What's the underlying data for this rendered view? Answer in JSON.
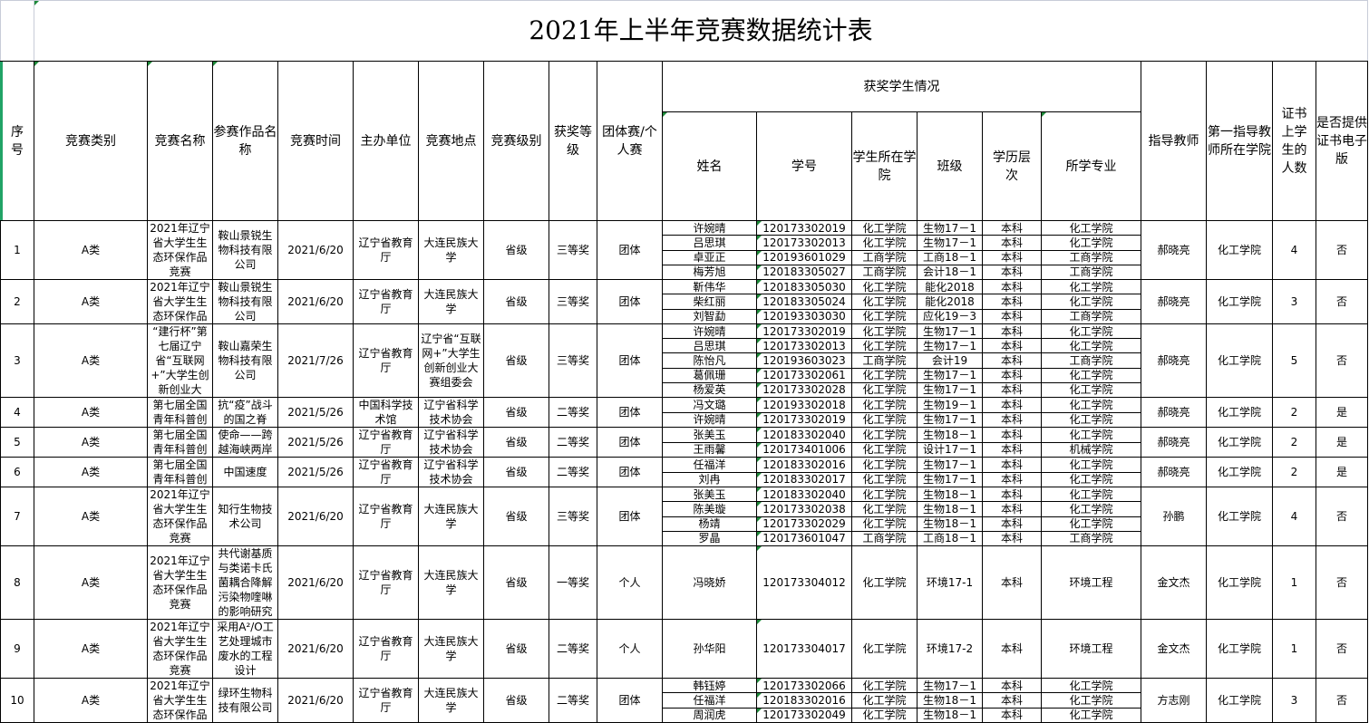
{
  "title": "2021年上半年竞赛数据统计表",
  "headers": {
    "seq": "序号",
    "category": "竞赛类别",
    "comp_name": "竞赛名称",
    "work_name": "参赛作品名称",
    "date": "竞赛时间",
    "organizer": "主办单位",
    "location": "竞赛地点",
    "level": "竞赛级别",
    "award": "获奖等级",
    "type": "团体赛/个人赛",
    "students_group": "获奖学生情况",
    "name": "姓名",
    "id": "学号",
    "college": "学生所在学院",
    "class": "班级",
    "degree": "学历层次",
    "major": "所学专业",
    "advisor": "指导教师",
    "advisor_college": "第一指导教师所在学院",
    "count": "证书上学生的人数",
    "e_cert": "是否提供证书电子版"
  },
  "rows": [
    {
      "seq": "1",
      "category": "A类",
      "comp_name": "2021年辽宁省大学生生态环保作品竞赛",
      "work_name": "鞍山景锐生物科技有限公司",
      "date": "2021/6/20",
      "organizer": "辽宁省教育厅",
      "location": "大连民族大学",
      "level": "省级",
      "award": "三等奖",
      "type": "团体",
      "students": [
        {
          "name": "许婉晴",
          "id": "120173302019",
          "college": "化工学院",
          "class": "生物17－1",
          "degree": "本科",
          "major": "化工学院"
        },
        {
          "name": "吕思琪",
          "id": "120173302013",
          "college": "化工学院",
          "class": "生物17－1",
          "degree": "本科",
          "major": "化工学院"
        },
        {
          "name": "卓亚正",
          "id": "120193601029",
          "college": "工商学院",
          "class": "工商18－1",
          "degree": "本科",
          "major": "工商学院"
        },
        {
          "name": "梅芳旭",
          "id": "120183305027",
          "college": "工商学院",
          "class": "会计18－1",
          "degree": "本科",
          "major": "工商学院"
        }
      ],
      "advisor": "郝晓亮",
      "advisor_college": "化工学院",
      "count": "4",
      "e_cert": "否"
    },
    {
      "seq": "2",
      "category": "A类",
      "comp_name": "2021年辽宁省大学生生态环保作品",
      "work_name": "鞍山景锐生物科技有限公司",
      "date": "2021/6/20",
      "organizer": "辽宁省教育厅",
      "location": "大连民族大学",
      "level": "省级",
      "award": "三等奖",
      "type": "团体",
      "students": [
        {
          "name": "靳伟华",
          "id": "120183305030",
          "college": "化工学院",
          "class": "能化2018",
          "degree": "本科",
          "major": "化工学院"
        },
        {
          "name": "柴红丽",
          "id": "120183305024",
          "college": "化工学院",
          "class": "能化2018",
          "degree": "本科",
          "major": "化工学院"
        },
        {
          "name": "刘智勐",
          "id": "120193303030",
          "college": "化工学院",
          "class": "应化19－3",
          "degree": "本科",
          "major": "工商学院"
        }
      ],
      "advisor": "郝晓亮",
      "advisor_college": "化工学院",
      "count": "3",
      "e_cert": "否"
    },
    {
      "seq": "3",
      "category": "A类",
      "comp_name": "“建行杯”第七届辽宁省“互联网+”大学生创新创业大",
      "work_name": "鞍山嘉荣生物科技有限公司",
      "date": "2021/7/26",
      "organizer": "辽宁省教育厅",
      "location": "辽宁省“互联网+”大学生创新创业大赛组委会",
      "level": "省级",
      "award": "三等奖",
      "type": "团体",
      "students": [
        {
          "name": "许婉晴",
          "id": "120173302019",
          "college": "化工学院",
          "class": "生物17－1",
          "degree": "本科",
          "major": "化工学院"
        },
        {
          "name": "吕思琪",
          "id": "120173302013",
          "college": "化工学院",
          "class": "生物17－1",
          "degree": "本科",
          "major": "化工学院"
        },
        {
          "name": "陈怡凡",
          "id": "120193603023",
          "college": "工商学院",
          "class": "会计19",
          "degree": "本科",
          "major": "工商学院"
        },
        {
          "name": "葛佩珊",
          "id": "120173302061",
          "college": "化工学院",
          "class": "生物17－1",
          "degree": "本科",
          "major": "化工学院"
        },
        {
          "name": "杨爱英",
          "id": "120173302028",
          "college": "化工学院",
          "class": "生物17－1",
          "degree": "本科",
          "major": "化工学院"
        }
      ],
      "advisor": "郝晓亮",
      "advisor_college": "化工学院",
      "count": "5",
      "e_cert": "否"
    },
    {
      "seq": "4",
      "category": "A类",
      "comp_name": "第七届全国青年科普创",
      "work_name": "抗“疫”战斗的国之脊",
      "date": "2021/5/26",
      "organizer": "中国科学技术馆",
      "location": "辽宁省科学技术协会",
      "level": "省级",
      "award": "二等奖",
      "type": "团体",
      "students": [
        {
          "name": "冯文璐",
          "id": "120193302018",
          "college": "化工学院",
          "class": "生物19－1",
          "degree": "本科",
          "major": "化工学院"
        },
        {
          "name": "许婉晴",
          "id": "120173302019",
          "college": "化工学院",
          "class": "生物17－1",
          "degree": "本科",
          "major": "化工学院"
        }
      ],
      "advisor": "郝晓亮",
      "advisor_college": "化工学院",
      "count": "2",
      "e_cert": "是"
    },
    {
      "seq": "5",
      "category": "A类",
      "comp_name": "第七届全国青年科普创",
      "work_name": "使命——跨越海峡两岸",
      "date": "2021/5/26",
      "organizer": "辽宁省教育厅",
      "location": "辽宁省科学技术协会",
      "level": "省级",
      "award": "二等奖",
      "type": "团体",
      "students": [
        {
          "name": "张美玉",
          "id": "120183302040",
          "college": "化工学院",
          "class": "生物18－1",
          "degree": "本科",
          "major": "化工学院"
        },
        {
          "name": "王雨馨",
          "id": "120173401006",
          "college": "化工学院",
          "class": "设计17－1",
          "degree": "本科",
          "major": "机械学院"
        }
      ],
      "advisor": "郝晓亮",
      "advisor_college": "化工学院",
      "count": "2",
      "e_cert": "是"
    },
    {
      "seq": "6",
      "category": "A类",
      "comp_name": "第七届全国青年科普创",
      "work_name": "中国速度",
      "date": "2021/5/26",
      "organizer": "辽宁省教育厅",
      "location": "辽宁省科学技术协会",
      "level": "省级",
      "award": "二等奖",
      "type": "团体",
      "students": [
        {
          "name": "任福洋",
          "id": "120183302016",
          "college": "化工学院",
          "class": "生物17－1",
          "degree": "本科",
          "major": "化工学院"
        },
        {
          "name": "刘冉",
          "id": "120183302017",
          "college": "化工学院",
          "class": "生物17－1",
          "degree": "本科",
          "major": "化工学院"
        }
      ],
      "advisor": "郝晓亮",
      "advisor_college": "化工学院",
      "count": "2",
      "e_cert": "是"
    },
    {
      "seq": "7",
      "category": "A类",
      "comp_name": "2021年辽宁省大学生生态环保作品竞赛",
      "work_name": "知行生物技术公司",
      "date": "2021/6/20",
      "organizer": "辽宁省教育厅",
      "location": "大连民族大学",
      "level": "省级",
      "award": "三等奖",
      "type": "团体",
      "students": [
        {
          "name": "张美玉",
          "id": "120183302040",
          "college": "化工学院",
          "class": "生物18－1",
          "degree": "本科",
          "major": "化工学院"
        },
        {
          "name": "陈美璇",
          "id": "120173302038",
          "college": "化工学院",
          "class": "生物18－1",
          "degree": "本科",
          "major": "化工学院"
        },
        {
          "name": "杨靖",
          "id": "120173302029",
          "college": "化工学院",
          "class": "生物18－1",
          "degree": "本科",
          "major": "化工学院"
        },
        {
          "name": "罗晶",
          "id": "120173601047",
          "college": "工商学院",
          "class": "工商18－1",
          "degree": "本科",
          "major": "工商学院"
        }
      ],
      "advisor": "孙鹏",
      "advisor_college": "化工学院",
      "count": "4",
      "e_cert": "否"
    },
    {
      "seq": "8",
      "category": "A类",
      "comp_name": "2021年辽宁省大学生生态环保作品竞赛",
      "work_name": "共代谢基质与类诺卡氏菌耦合降解污染物喹啉的影响研究",
      "date": "2021/6/20",
      "organizer": "辽宁省教育厅",
      "location": "大连民族大学",
      "level": "省级",
      "award": "一等奖",
      "type": "个人",
      "students": [
        {
          "name": "冯晓娇",
          "id": "120173304012",
          "college": "化工学院",
          "class": "环境17-1",
          "degree": "本科",
          "major": "环境工程"
        }
      ],
      "advisor": "金文杰",
      "advisor_college": "化工学院",
      "count": "1",
      "e_cert": "否"
    },
    {
      "seq": "9",
      "category": "A类",
      "comp_name": "2021年辽宁省大学生生态环保作品竞赛",
      "work_name": "采用A²/O工艺处理城市废水的工程设计",
      "date": "2021/6/20",
      "organizer": "辽宁省教育厅",
      "location": "大连民族大学",
      "level": "省级",
      "award": "二等奖",
      "type": "个人",
      "students": [
        {
          "name": "孙华阳",
          "id": "120173304017",
          "college": "化工学院",
          "class": "环境17-2",
          "degree": "本科",
          "major": "环境工程"
        }
      ],
      "advisor": "金文杰",
      "advisor_college": "化工学院",
      "count": "1",
      "e_cert": "否"
    },
    {
      "seq": "10",
      "category": "A类",
      "comp_name": "2021年辽宁省大学生生态环保作品",
      "work_name": "绿环生物科技有限公司",
      "date": "2021/6/20",
      "organizer": "辽宁省教育厅",
      "location": "大连民族大学",
      "level": "省级",
      "award": "二等奖",
      "type": "团体",
      "students": [
        {
          "name": "韩钰婷",
          "id": "120173302066",
          "college": "化工学院",
          "class": "生物17－1",
          "degree": "本科",
          "major": "化工学院"
        },
        {
          "name": "任福洋",
          "id": "120183302016",
          "college": "化工学院",
          "class": "生物18－1",
          "degree": "本科",
          "major": "化工学院"
        },
        {
          "name": "周润虎",
          "id": "120173302049",
          "college": "化工学院",
          "class": "生物18－1",
          "degree": "本科",
          "major": "化工学院"
        }
      ],
      "advisor": "方志刚",
      "advisor_college": "化工学院",
      "count": "3",
      "e_cert": "否"
    }
  ]
}
